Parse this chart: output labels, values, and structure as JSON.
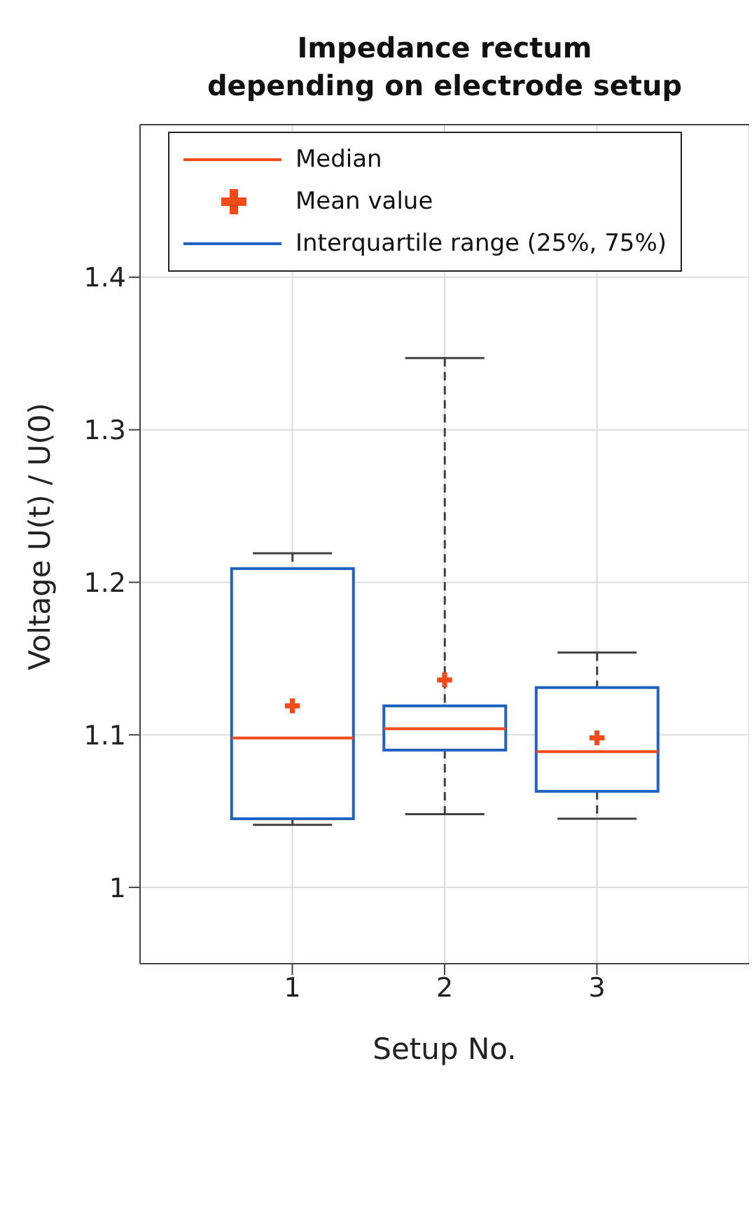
{
  "chart_data": {
    "type": "box",
    "title": "Impedance rectum\ndepending on electrode setup",
    "xlabel": "Setup No.",
    "ylabel": "Voltage U(t) / U(0)",
    "categories": [
      "1",
      "2",
      "3"
    ],
    "series": [
      {
        "name": "Interquartile range (25%, 75%)",
        "type": "box",
        "color": "#1f62c4",
        "boxes": [
          {
            "low": 1.041,
            "q1": 1.045,
            "median": 1.098,
            "q3": 1.209,
            "high": 1.219
          },
          {
            "low": 1.048,
            "q1": 1.09,
            "median": 1.104,
            "q3": 1.119,
            "high": 1.347
          },
          {
            "low": 1.045,
            "q1": 1.063,
            "median": 1.089,
            "q3": 1.131,
            "high": 1.154
          }
        ]
      },
      {
        "name": "Mean value",
        "type": "scatter",
        "color": "#f24a1a",
        "x": [
          "1",
          "2",
          "3"
        ],
        "values": [
          1.119,
          1.136,
          1.098
        ],
        "marker": "cross"
      }
    ],
    "annotations": [
      "Median"
    ],
    "ylim": [
      0.95,
      1.5
    ],
    "yticks": [
      1,
      1.1,
      1.2,
      1.3,
      1.4
    ],
    "grid": true,
    "legend": "top"
  }
}
